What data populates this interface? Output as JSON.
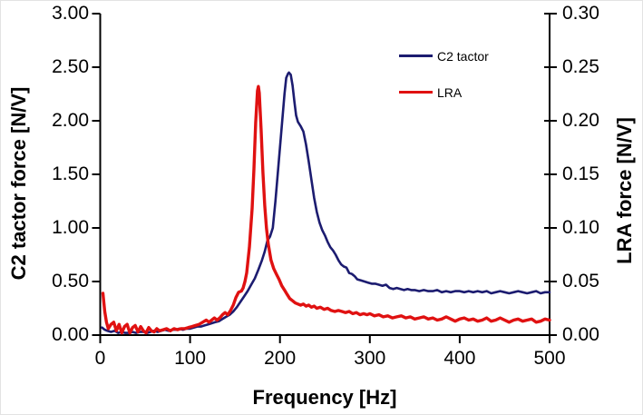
{
  "chart_data": {
    "type": "line",
    "title": "",
    "xlabel": "Frequency [Hz]",
    "left_axis": {
      "title": "C2 tactor force [N/V]",
      "range": [
        0.0,
        3.0
      ],
      "tick_values": [
        0.0,
        0.5,
        1.0,
        1.5,
        2.0,
        2.5,
        3.0
      ],
      "tick_labels": [
        "0.00",
        "0.50",
        "1.00",
        "1.50",
        "2.00",
        "2.50",
        "3.00"
      ]
    },
    "right_axis": {
      "title": "LRA force [N/V]",
      "range": [
        0.0,
        0.3
      ],
      "tick_values": [
        0.0,
        0.05,
        0.1,
        0.15,
        0.2,
        0.25,
        0.3
      ],
      "tick_labels": [
        "0.00",
        "0.05",
        "0.10",
        "0.15",
        "0.20",
        "0.25",
        "0.30"
      ]
    },
    "x_axis": {
      "range": [
        0,
        500
      ],
      "tick_values": [
        0,
        100,
        200,
        300,
        400,
        500
      ],
      "tick_labels": [
        "0",
        "100",
        "200",
        "300",
        "400",
        "500"
      ]
    },
    "grid": false,
    "legend_position": "upper-right-inside",
    "axis_color": "#000000",
    "series": [
      {
        "name": "C2 tactor",
        "axis": "left",
        "color": "#1c1c70",
        "line_width": 2.6,
        "points": [
          [
            2,
            0.07
          ],
          [
            5,
            0.05
          ],
          [
            8,
            0.04
          ],
          [
            12,
            0.03
          ],
          [
            16,
            0.04
          ],
          [
            20,
            0.02
          ],
          [
            24,
            0.03
          ],
          [
            28,
            0.02
          ],
          [
            32,
            0.02
          ],
          [
            36,
            0.03
          ],
          [
            40,
            0.02
          ],
          [
            44,
            0.03
          ],
          [
            48,
            0.03
          ],
          [
            52,
            0.02
          ],
          [
            56,
            0.03
          ],
          [
            60,
            0.04
          ],
          [
            64,
            0.03
          ],
          [
            68,
            0.04
          ],
          [
            72,
            0.05
          ],
          [
            76,
            0.04
          ],
          [
            80,
            0.05
          ],
          [
            84,
            0.05
          ],
          [
            88,
            0.06
          ],
          [
            92,
            0.05
          ],
          [
            96,
            0.06
          ],
          [
            100,
            0.06
          ],
          [
            104,
            0.07
          ],
          [
            108,
            0.08
          ],
          [
            112,
            0.08
          ],
          [
            116,
            0.09
          ],
          [
            120,
            0.1
          ],
          [
            124,
            0.11
          ],
          [
            128,
            0.12
          ],
          [
            132,
            0.13
          ],
          [
            136,
            0.15
          ],
          [
            140,
            0.17
          ],
          [
            144,
            0.19
          ],
          [
            148,
            0.22
          ],
          [
            152,
            0.26
          ],
          [
            156,
            0.31
          ],
          [
            160,
            0.36
          ],
          [
            164,
            0.41
          ],
          [
            168,
            0.47
          ],
          [
            172,
            0.53
          ],
          [
            176,
            0.61
          ],
          [
            180,
            0.7
          ],
          [
            183,
            0.78
          ],
          [
            186,
            0.88
          ],
          [
            189,
            0.92
          ],
          [
            192,
            1.0
          ],
          [
            195,
            1.25
          ],
          [
            198,
            1.55
          ],
          [
            201,
            1.85
          ],
          [
            203,
            2.05
          ],
          [
            205,
            2.25
          ],
          [
            207,
            2.4
          ],
          [
            209,
            2.44
          ],
          [
            210,
            2.45
          ],
          [
            212,
            2.43
          ],
          [
            214,
            2.33
          ],
          [
            216,
            2.18
          ],
          [
            218,
            2.05
          ],
          [
            220,
            1.99
          ],
          [
            223,
            1.95
          ],
          [
            226,
            1.9
          ],
          [
            229,
            1.78
          ],
          [
            232,
            1.62
          ],
          [
            235,
            1.45
          ],
          [
            238,
            1.28
          ],
          [
            241,
            1.15
          ],
          [
            244,
            1.05
          ],
          [
            247,
            0.98
          ],
          [
            250,
            0.93
          ],
          [
            253,
            0.87
          ],
          [
            256,
            0.82
          ],
          [
            259,
            0.79
          ],
          [
            262,
            0.75
          ],
          [
            265,
            0.7
          ],
          [
            268,
            0.66
          ],
          [
            271,
            0.64
          ],
          [
            274,
            0.63
          ],
          [
            277,
            0.58
          ],
          [
            280,
            0.57
          ],
          [
            283,
            0.55
          ],
          [
            286,
            0.52
          ],
          [
            290,
            0.51
          ],
          [
            294,
            0.5
          ],
          [
            298,
            0.49
          ],
          [
            302,
            0.48
          ],
          [
            306,
            0.48
          ],
          [
            310,
            0.47
          ],
          [
            314,
            0.46
          ],
          [
            318,
            0.47
          ],
          [
            322,
            0.44
          ],
          [
            326,
            0.43
          ],
          [
            330,
            0.44
          ],
          [
            334,
            0.43
          ],
          [
            338,
            0.42
          ],
          [
            342,
            0.43
          ],
          [
            346,
            0.42
          ],
          [
            350,
            0.42
          ],
          [
            355,
            0.41
          ],
          [
            360,
            0.42
          ],
          [
            365,
            0.41
          ],
          [
            370,
            0.41
          ],
          [
            375,
            0.42
          ],
          [
            380,
            0.4
          ],
          [
            385,
            0.41
          ],
          [
            390,
            0.4
          ],
          [
            395,
            0.41
          ],
          [
            400,
            0.41
          ],
          [
            405,
            0.4
          ],
          [
            410,
            0.41
          ],
          [
            415,
            0.4
          ],
          [
            420,
            0.41
          ],
          [
            425,
            0.4
          ],
          [
            430,
            0.41
          ],
          [
            435,
            0.39
          ],
          [
            440,
            0.4
          ],
          [
            445,
            0.41
          ],
          [
            450,
            0.4
          ],
          [
            455,
            0.39
          ],
          [
            460,
            0.4
          ],
          [
            465,
            0.41
          ],
          [
            470,
            0.4
          ],
          [
            475,
            0.39
          ],
          [
            480,
            0.4
          ],
          [
            485,
            0.41
          ],
          [
            490,
            0.39
          ],
          [
            495,
            0.4
          ],
          [
            500,
            0.4
          ]
        ]
      },
      {
        "name": "LRA",
        "axis": "right",
        "color": "#e01111",
        "line_width": 3.4,
        "points": [
          [
            3,
            0.039
          ],
          [
            5,
            0.022
          ],
          [
            7,
            0.012
          ],
          [
            9,
            0.006
          ],
          [
            12,
            0.01
          ],
          [
            15,
            0.012
          ],
          [
            18,
            0.004
          ],
          [
            21,
            0.01
          ],
          [
            24,
            0.002
          ],
          [
            27,
            0.008
          ],
          [
            30,
            0.01
          ],
          [
            33,
            0.002
          ],
          [
            36,
            0.007
          ],
          [
            39,
            0.009
          ],
          [
            42,
            0.003
          ],
          [
            45,
            0.008
          ],
          [
            48,
            0.004
          ],
          [
            51,
            0.002
          ],
          [
            54,
            0.007
          ],
          [
            57,
            0.004
          ],
          [
            60,
            0.003
          ],
          [
            63,
            0.006
          ],
          [
            66,
            0.004
          ],
          [
            70,
            0.005
          ],
          [
            74,
            0.006
          ],
          [
            78,
            0.004
          ],
          [
            82,
            0.006
          ],
          [
            86,
            0.005
          ],
          [
            90,
            0.006
          ],
          [
            94,
            0.006
          ],
          [
            98,
            0.007
          ],
          [
            102,
            0.008
          ],
          [
            106,
            0.009
          ],
          [
            110,
            0.01
          ],
          [
            114,
            0.012
          ],
          [
            118,
            0.014
          ],
          [
            121,
            0.012
          ],
          [
            124,
            0.014
          ],
          [
            127,
            0.016
          ],
          [
            130,
            0.014
          ],
          [
            133,
            0.016
          ],
          [
            136,
            0.019
          ],
          [
            139,
            0.021
          ],
          [
            142,
            0.019
          ],
          [
            145,
            0.023
          ],
          [
            148,
            0.028
          ],
          [
            151,
            0.035
          ],
          [
            154,
            0.04
          ],
          [
            157,
            0.041
          ],
          [
            159,
            0.044
          ],
          [
            161,
            0.05
          ],
          [
            163,
            0.058
          ],
          [
            166,
            0.082
          ],
          [
            169,
            0.118
          ],
          [
            171,
            0.155
          ],
          [
            173,
            0.198
          ],
          [
            175,
            0.228
          ],
          [
            176,
            0.232
          ],
          [
            177,
            0.226
          ],
          [
            179,
            0.192
          ],
          [
            181,
            0.152
          ],
          [
            183,
            0.121
          ],
          [
            185,
            0.1
          ],
          [
            187,
            0.085
          ],
          [
            190,
            0.07
          ],
          [
            193,
            0.062
          ],
          [
            196,
            0.057
          ],
          [
            199,
            0.052
          ],
          [
            202,
            0.046
          ],
          [
            205,
            0.042
          ],
          [
            208,
            0.038
          ],
          [
            211,
            0.034
          ],
          [
            214,
            0.032
          ],
          [
            217,
            0.03
          ],
          [
            220,
            0.029
          ],
          [
            223,
            0.028
          ],
          [
            226,
            0.029
          ],
          [
            229,
            0.027
          ],
          [
            232,
            0.028
          ],
          [
            235,
            0.026
          ],
          [
            238,
            0.027
          ],
          [
            241,
            0.025
          ],
          [
            245,
            0.026
          ],
          [
            249,
            0.024
          ],
          [
            253,
            0.025
          ],
          [
            257,
            0.023
          ],
          [
            261,
            0.022
          ],
          [
            265,
            0.023
          ],
          [
            269,
            0.022
          ],
          [
            273,
            0.021
          ],
          [
            277,
            0.022
          ],
          [
            281,
            0.02
          ],
          [
            285,
            0.021
          ],
          [
            289,
            0.019
          ],
          [
            293,
            0.02
          ],
          [
            297,
            0.019
          ],
          [
            300,
            0.02
          ],
          [
            305,
            0.018
          ],
          [
            310,
            0.019
          ],
          [
            315,
            0.017
          ],
          [
            320,
            0.018
          ],
          [
            325,
            0.016
          ],
          [
            330,
            0.017
          ],
          [
            335,
            0.018
          ],
          [
            340,
            0.016
          ],
          [
            345,
            0.017
          ],
          [
            350,
            0.015
          ],
          [
            355,
            0.016
          ],
          [
            360,
            0.017
          ],
          [
            365,
            0.015
          ],
          [
            370,
            0.016
          ],
          [
            375,
            0.014
          ],
          [
            380,
            0.015
          ],
          [
            385,
            0.017
          ],
          [
            390,
            0.015
          ],
          [
            395,
            0.013
          ],
          [
            400,
            0.015
          ],
          [
            405,
            0.016
          ],
          [
            410,
            0.014
          ],
          [
            415,
            0.015
          ],
          [
            420,
            0.013
          ],
          [
            425,
            0.014
          ],
          [
            430,
            0.016
          ],
          [
            435,
            0.013
          ],
          [
            440,
            0.014
          ],
          [
            445,
            0.016
          ],
          [
            450,
            0.014
          ],
          [
            455,
            0.012
          ],
          [
            460,
            0.014
          ],
          [
            465,
            0.015
          ],
          [
            470,
            0.013
          ],
          [
            475,
            0.014
          ],
          [
            480,
            0.015
          ],
          [
            485,
            0.012
          ],
          [
            490,
            0.013
          ],
          [
            495,
            0.015
          ],
          [
            500,
            0.014
          ]
        ]
      }
    ]
  },
  "legend": {
    "entries": [
      {
        "label": "C2 tactor",
        "color": "#1c1c70"
      },
      {
        "label": "LRA",
        "color": "#e01111"
      }
    ]
  }
}
